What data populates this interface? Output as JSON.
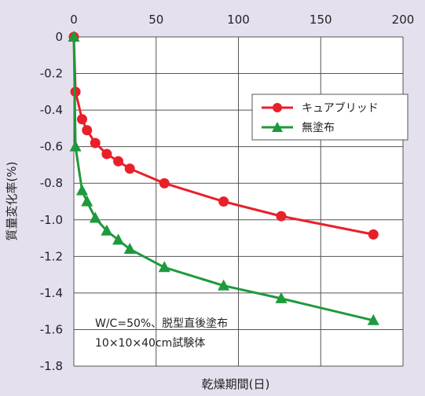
{
  "chart_data": {
    "type": "line",
    "xlabel": "乾燥期間(日)",
    "ylabel": "質量変化率(%)",
    "xlim": [
      0,
      200
    ],
    "ylim": [
      -1.8,
      0
    ],
    "x_ticks": [
      "0",
      "50",
      "100",
      "150",
      "200"
    ],
    "y_ticks": [
      "0",
      "-0.2",
      "-0.4",
      "-0.6",
      "-0.8",
      "-1.0",
      "-1.2",
      "-1.4",
      "-1.6",
      "-1.8"
    ],
    "x_axis_position": "top",
    "grid": true,
    "legend_position": "top-right",
    "annotation": [
      "W/C=50%、脱型直後塗布",
      "10×10×40cm試験体"
    ],
    "series": [
      {
        "name": "キュアブリッド",
        "color": "#e8202a",
        "marker": "circle",
        "x": [
          0,
          1,
          5,
          8,
          13,
          20,
          27,
          34,
          55,
          91,
          126,
          182
        ],
        "y": [
          0,
          -0.3,
          -0.45,
          -0.51,
          -0.58,
          -0.64,
          -0.68,
          -0.72,
          -0.8,
          -0.9,
          -0.98,
          -1.08
        ]
      },
      {
        "name": "無塗布",
        "color": "#1e9a3c",
        "marker": "triangle",
        "x": [
          0,
          1,
          5,
          8,
          13,
          20,
          27,
          34,
          55,
          91,
          126,
          182
        ],
        "y": [
          0,
          -0.6,
          -0.84,
          -0.9,
          -0.99,
          -1.06,
          -1.11,
          -1.16,
          -1.26,
          -1.36,
          -1.43,
          -1.55
        ]
      }
    ]
  }
}
